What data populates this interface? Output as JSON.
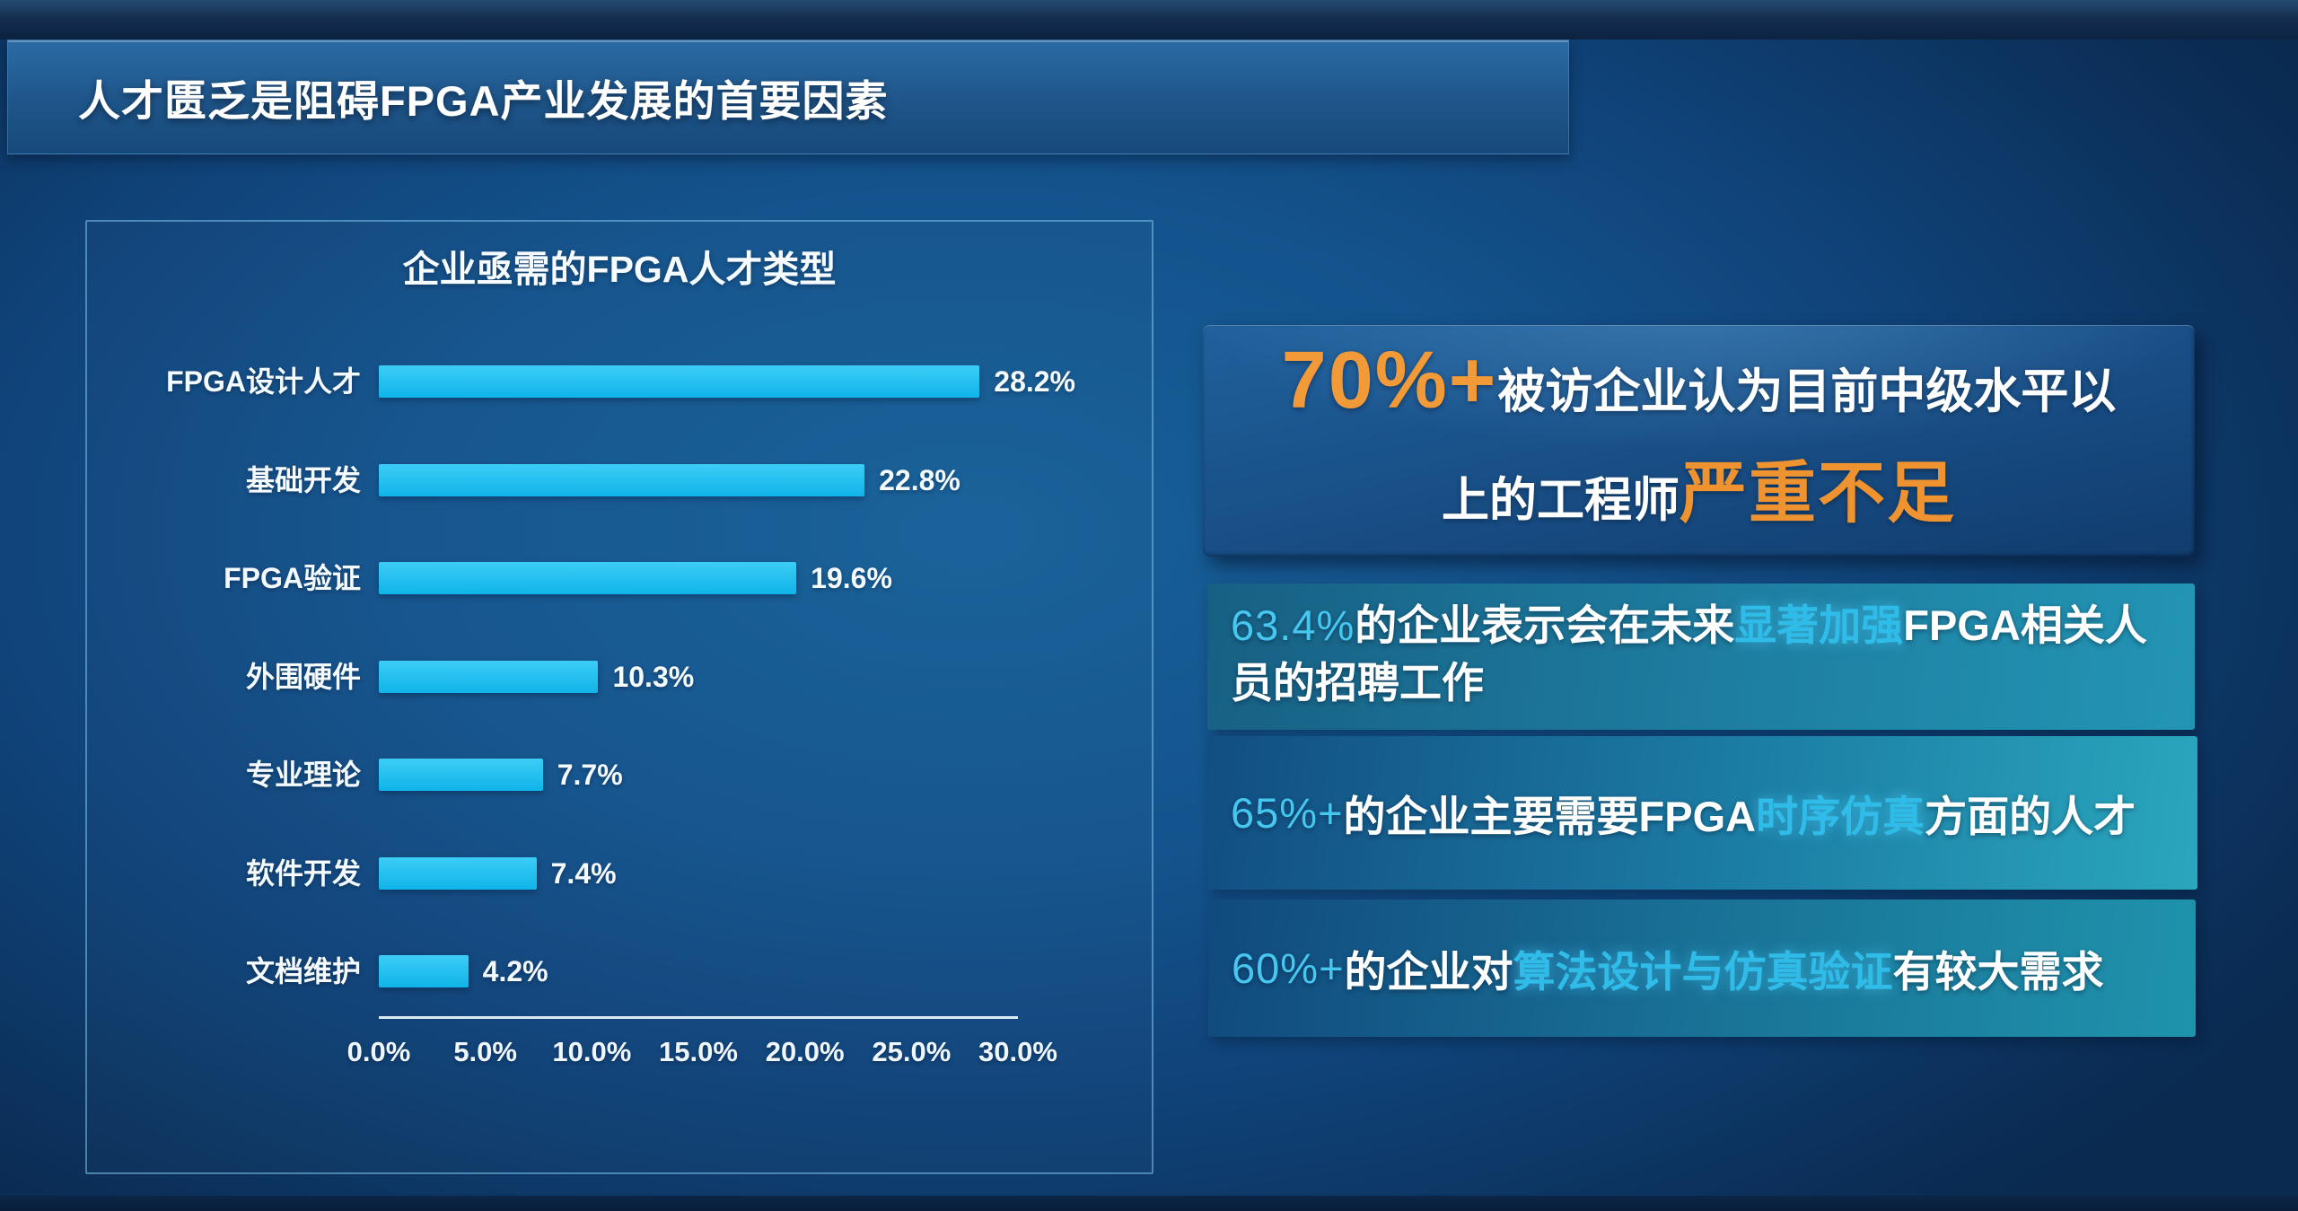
{
  "header": {
    "title": "人才匮乏是阻碍FPGA产业发展的首要因素"
  },
  "chart_data": {
    "type": "bar",
    "orientation": "horizontal",
    "title": "企业亟需的FPGA人才类型",
    "categories": [
      "FPGA设计人才",
      "基础开发",
      "FPGA验证",
      "外围硬件",
      "专业理论",
      "软件开发",
      "文档维护"
    ],
    "values": [
      28.2,
      22.8,
      19.6,
      10.3,
      7.7,
      7.4,
      4.2
    ],
    "value_labels": [
      "28.2%",
      "22.8%",
      "19.6%",
      "10.3%",
      "7.7%",
      "7.4%",
      "4.2%"
    ],
    "tick_labels": [
      "0.0%",
      "5.0%",
      "10.0%",
      "15.0%",
      "20.0%",
      "25.0%",
      "30.0%"
    ],
    "xlim": [
      0,
      30
    ],
    "xlabel": "",
    "ylabel": "",
    "grid": false,
    "legend": false,
    "bar_color": "#1ec1f2"
  },
  "callouts": {
    "c1": {
      "stat": "70%+",
      "line1": "被访企业认为目前中级水平以",
      "line2_pre": "上的工程师",
      "line2_em": "严重不足"
    },
    "c2": {
      "stat": "63.4%",
      "t1": "的企业表示会在未来",
      "em": "显著加强",
      "t2": "FPGA相关人",
      "t2b": "员的招聘工作"
    },
    "c3": {
      "stat": "65%+",
      "t1": "的企业主要需要FPGA",
      "em": "时序仿真",
      "t2": "方面的人才"
    },
    "c4": {
      "stat": "60%+",
      "t1": "的企业对",
      "em": "算法设计与仿真验证",
      "t2": "有较大需求"
    }
  },
  "colors": {
    "accent_orange": "#f29a38",
    "accent_cyan": "#45c7ef",
    "bar": "#1ec1f2",
    "background_center": "#14528e",
    "background_edge": "#0b2c53"
  }
}
